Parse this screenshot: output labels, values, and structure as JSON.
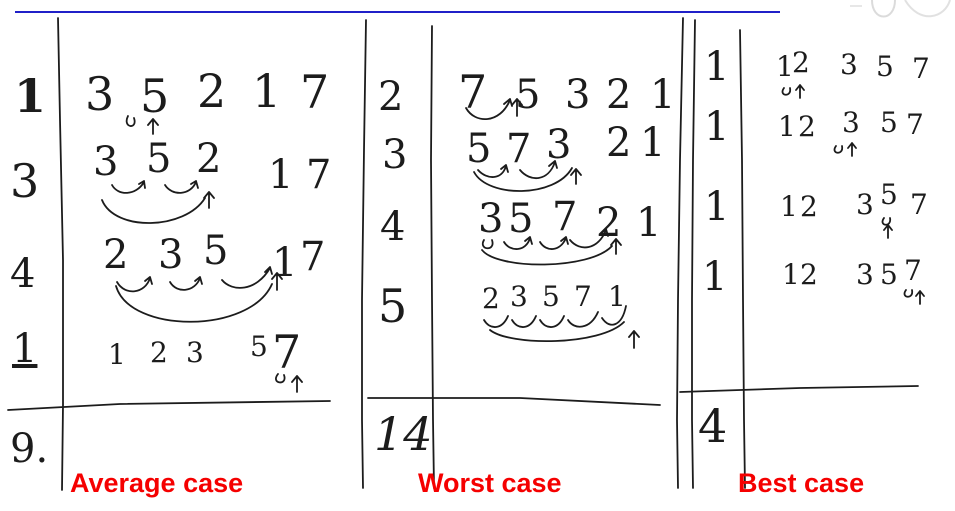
{
  "captions": {
    "average": "Average case",
    "worst": "Worst case",
    "best": "Best case"
  },
  "average": {
    "left_column": [
      "1",
      "3",
      "4",
      "1",
      "9."
    ],
    "rows": [
      [
        "3",
        "5",
        "2",
        "1",
        "7"
      ],
      [
        "3",
        "5",
        "2",
        "1",
        "7"
      ],
      [
        "2",
        "3",
        "5",
        "1",
        "7"
      ],
      [
        "1",
        "2",
        "3",
        "5",
        "7"
      ]
    ]
  },
  "worst": {
    "left_column": [
      "2",
      "3",
      "4",
      "5",
      "14"
    ],
    "rows": [
      [
        "7",
        "5",
        "3",
        "2",
        "1"
      ],
      [
        "5",
        "7",
        "3",
        "2",
        "1"
      ],
      [
        "3",
        "5",
        "7",
        "2",
        "1"
      ],
      [
        "2",
        "3",
        "5",
        "7",
        "1"
      ]
    ]
  },
  "best": {
    "left_column": [
      "1",
      "1",
      "1",
      "1",
      "4"
    ],
    "rows": [
      [
        "1",
        "2",
        "3",
        "5",
        "7"
      ],
      [
        "1",
        "2",
        "3",
        "5",
        "7"
      ],
      [
        "1",
        "2",
        "3",
        "5",
        "7"
      ],
      [
        "1",
        "2",
        "3",
        "5",
        "7"
      ]
    ]
  },
  "colors": {
    "ink": "#1c1c1c",
    "caption": "#f50000",
    "header_rule": "#2020c8"
  },
  "icons": [
    "ghost-logo-icon"
  ]
}
